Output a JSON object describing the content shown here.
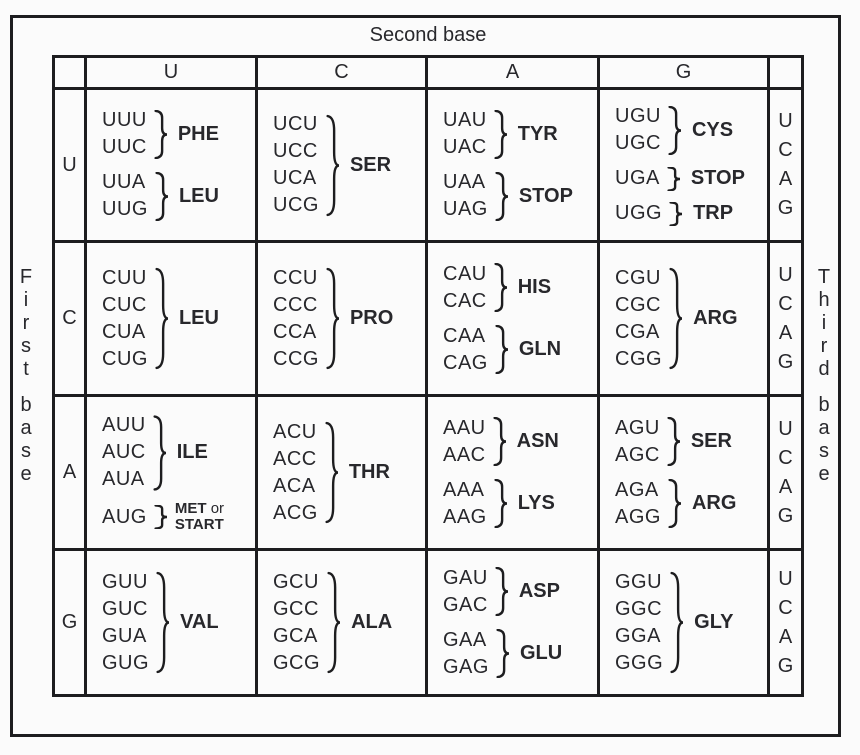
{
  "axes": {
    "second_base": "Second base",
    "first_base": "First base",
    "third_base": "Third base"
  },
  "table": {
    "column_headers": [
      "U",
      "C",
      "A",
      "G"
    ],
    "row_headers": [
      "U",
      "C",
      "A",
      "G"
    ],
    "third_base": [
      "U",
      "C",
      "A",
      "G"
    ],
    "cells": [
      [
        {
          "groups": [
            {
              "codons": [
                "UUU",
                "UUC"
              ],
              "labels": [
                "PHE"
              ]
            },
            {
              "codons": [
                "UUA",
                "UUG"
              ],
              "labels": [
                "LEU"
              ]
            }
          ]
        },
        {
          "groups": [
            {
              "codons": [
                "UCU",
                "UCC",
                "UCA",
                "UCG"
              ],
              "labels": [
                "SER"
              ]
            }
          ]
        },
        {
          "groups": [
            {
              "codons": [
                "UAU",
                "UAC"
              ],
              "labels": [
                "TYR"
              ]
            },
            {
              "codons": [
                "UAA",
                "UAG"
              ],
              "labels": [
                "STOP"
              ]
            }
          ]
        },
        {
          "groups": [
            {
              "codons": [
                "UGU",
                "UGC"
              ],
              "labels": [
                "CYS"
              ]
            },
            {
              "codons": [
                "UGA"
              ],
              "labels": [
                "STOP"
              ]
            },
            {
              "codons": [
                "UGG"
              ],
              "labels": [
                "TRP"
              ]
            }
          ]
        }
      ],
      [
        {
          "groups": [
            {
              "codons": [
                "CUU",
                "CUC",
                "CUA",
                "CUG"
              ],
              "labels": [
                "LEU"
              ]
            }
          ]
        },
        {
          "groups": [
            {
              "codons": [
                "CCU",
                "CCC",
                "CCA",
                "CCG"
              ],
              "labels": [
                "PRO"
              ]
            }
          ]
        },
        {
          "groups": [
            {
              "codons": [
                "CAU",
                "CAC"
              ],
              "labels": [
                "HIS"
              ]
            },
            {
              "codons": [
                "CAA",
                "CAG"
              ],
              "labels": [
                "GLN"
              ]
            }
          ]
        },
        {
          "groups": [
            {
              "codons": [
                "CGU",
                "CGC",
                "CGA",
                "CGG"
              ],
              "labels": [
                "ARG"
              ]
            }
          ]
        }
      ],
      [
        {
          "groups": [
            {
              "codons": [
                "AUU",
                "AUC",
                "AUA"
              ],
              "labels": [
                "ILE"
              ]
            },
            {
              "codons": [
                "AUG"
              ],
              "labels": [
                "MET or",
                "START"
              ],
              "small": true
            }
          ]
        },
        {
          "groups": [
            {
              "codons": [
                "ACU",
                "ACC",
                "ACA",
                "ACG"
              ],
              "labels": [
                "THR"
              ]
            }
          ]
        },
        {
          "groups": [
            {
              "codons": [
                "AAU",
                "AAC"
              ],
              "labels": [
                "ASN"
              ]
            },
            {
              "codons": [
                "AAA",
                "AAG"
              ],
              "labels": [
                "LYS"
              ]
            }
          ]
        },
        {
          "groups": [
            {
              "codons": [
                "AGU",
                "AGC"
              ],
              "labels": [
                "SER"
              ]
            },
            {
              "codons": [
                "AGA",
                "AGG"
              ],
              "labels": [
                "ARG"
              ]
            }
          ]
        }
      ],
      [
        {
          "groups": [
            {
              "codons": [
                "GUU",
                "GUC",
                "GUA",
                "GUG"
              ],
              "labels": [
                "VAL"
              ]
            }
          ]
        },
        {
          "groups": [
            {
              "codons": [
                "GCU",
                "GCC",
                "GCA",
                "GCG"
              ],
              "labels": [
                "ALA"
              ]
            }
          ]
        },
        {
          "groups": [
            {
              "codons": [
                "GAU",
                "GAC"
              ],
              "labels": [
                "ASP"
              ]
            },
            {
              "codons": [
                "GAA",
                "GAG"
              ],
              "labels": [
                "GLU"
              ]
            }
          ]
        },
        {
          "groups": [
            {
              "codons": [
                "GGU",
                "GGC",
                "GGA",
                "GGG"
              ],
              "labels": [
                "GLY"
              ]
            }
          ]
        }
      ]
    ]
  },
  "colors": {
    "background": "#fbfbfb",
    "line": "#1d1d1f",
    "text": "#28282c"
  }
}
